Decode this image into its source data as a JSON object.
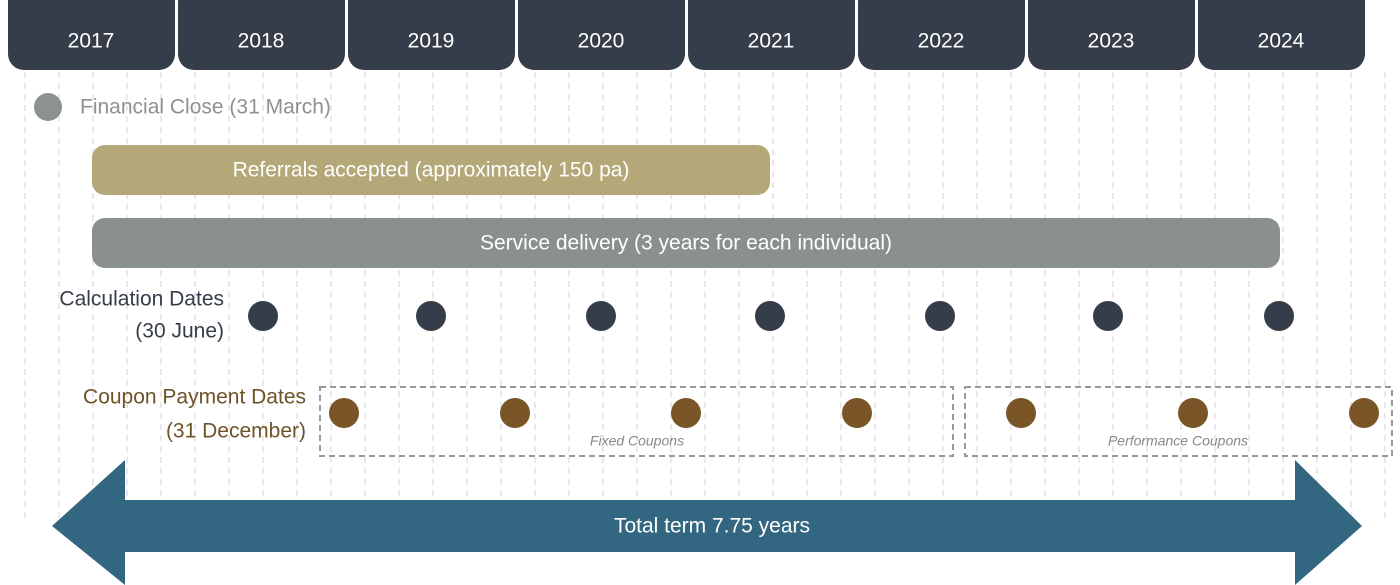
{
  "years": [
    "2017",
    "2018",
    "2019",
    "2020",
    "2021",
    "2022",
    "2023",
    "2024"
  ],
  "legend": {
    "label": "Financial Close (31 March)"
  },
  "bars": [
    {
      "label": "Referrals accepted (approximately 150 pa)"
    },
    {
      "label": "Service delivery (3 years for each individual)"
    }
  ],
  "calculation_dates": {
    "label_line1": "Calculation Dates",
    "label_line2": "(30 June)"
  },
  "coupon_dates": {
    "label_line1": "Coupon Payment Dates",
    "label_line2": "(31 December)",
    "groups": [
      "Fixed Coupons",
      "Performance Coupons"
    ]
  },
  "term": {
    "label": "Total term 7.75 years"
  }
}
